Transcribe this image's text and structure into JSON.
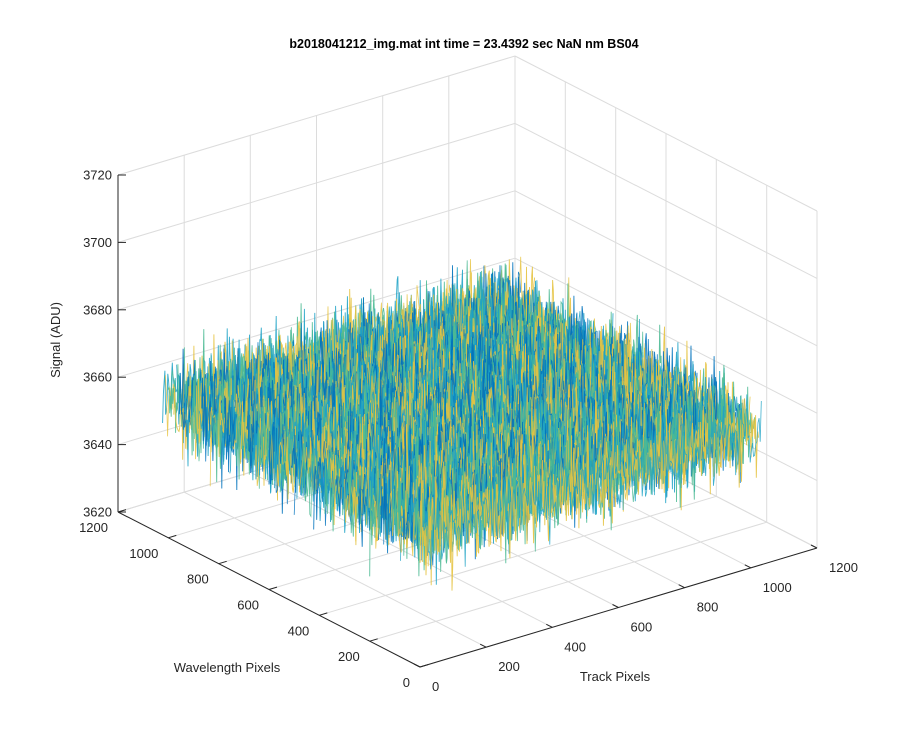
{
  "chart_data": {
    "type": "surface",
    "title": "b2018041212_img.mat int time = 23.4392 sec   NaN nm BS04",
    "xlabel": "Track Pixels",
    "ylabel": "Wavelength Pixels",
    "zlabel": "Signal (ADU)",
    "xlim": [
      0,
      1200
    ],
    "ylim": [
      0,
      1200
    ],
    "zlim": [
      3620,
      3720
    ],
    "xticks": [
      "0",
      "200",
      "400",
      "600",
      "800",
      "1000",
      "1200"
    ],
    "yticks": [
      "0",
      "200",
      "400",
      "600",
      "800",
      "1000",
      "1200"
    ],
    "zticks": [
      "3620",
      "3640",
      "3660",
      "3680",
      "3700",
      "3720"
    ],
    "data_extent": {
      "x": [
        1,
        1024
      ],
      "y": [
        1,
        1024
      ]
    },
    "mean_signal": 3660,
    "signal_range_approx": [
      3628,
      3705
    ],
    "grid": true,
    "colormap": [
      "#0072bd",
      "#1fa3c6",
      "#4cba94",
      "#e6c341"
    ]
  }
}
